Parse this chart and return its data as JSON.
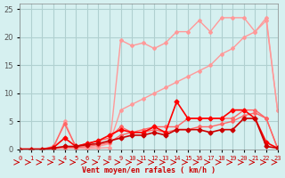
{
  "xlabel": "Vent moyen/en rafales ( km/h )",
  "ylabel": "",
  "xlim": [
    0,
    23
  ],
  "ylim": [
    0,
    26
  ],
  "bg_color": "#d6f0f0",
  "grid_color": "#b0d0d0",
  "series": [
    {
      "color": "#ff9999",
      "lw": 1.0,
      "marker": "D",
      "ms": 2.0,
      "y": [
        0,
        0,
        0,
        0.1,
        5,
        0.2,
        0.1,
        0.2,
        0.3,
        19.5,
        18.5,
        19,
        18,
        19,
        21,
        21,
        23,
        21,
        23.5,
        23.5,
        23.5,
        21,
        23.5,
        7
      ]
    },
    {
      "color": "#ff9999",
      "lw": 1.0,
      "marker": "D",
      "ms": 2.0,
      "y": [
        0,
        0,
        0,
        0.1,
        0.2,
        0.2,
        0.3,
        0.5,
        1.0,
        7.0,
        8,
        9,
        10,
        11,
        12,
        13,
        14,
        15,
        17,
        18,
        20,
        21,
        23,
        7
      ]
    },
    {
      "color": "#ff6666",
      "lw": 1.0,
      "marker": "D",
      "ms": 2.0,
      "y": [
        0,
        0,
        0,
        0.5,
        4.5,
        0.5,
        1.0,
        1.5,
        2.0,
        4,
        3,
        3.5,
        4,
        4,
        4,
        5.5,
        5.5,
        5.5,
        5.5,
        5.5,
        7,
        7,
        5.5,
        0.2
      ]
    },
    {
      "color": "#ff6666",
      "lw": 1.0,
      "marker": "D",
      "ms": 2.0,
      "y": [
        0,
        0,
        0,
        0.2,
        0.3,
        0.3,
        0.5,
        0.8,
        1.2,
        2.5,
        3,
        3,
        3.5,
        3,
        3.5,
        3.5,
        4,
        4,
        4.5,
        5,
        6,
        6.5,
        5.5,
        0.2
      ]
    },
    {
      "color": "#ff0000",
      "lw": 1.2,
      "marker": "D",
      "ms": 2.5,
      "y": [
        0,
        0,
        0,
        0.3,
        2.0,
        0.5,
        1.0,
        1.5,
        2.5,
        3.5,
        3,
        3,
        4,
        3,
        8.5,
        5.5,
        5.5,
        5.5,
        5.5,
        7,
        7,
        5.5,
        1.2,
        0.2
      ]
    },
    {
      "color": "#cc0000",
      "lw": 1.2,
      "marker": "D",
      "ms": 2.5,
      "y": [
        0,
        0,
        0,
        0.2,
        0.5,
        0.5,
        0.8,
        1.0,
        1.5,
        2.0,
        2.5,
        2.5,
        3.0,
        2.5,
        3.5,
        3.5,
        3.5,
        3.0,
        3.5,
        3.5,
        5.5,
        5.5,
        0.5,
        0.2
      ]
    }
  ],
  "xtick_labels": [
    "0",
    "1",
    "2",
    "3",
    "4",
    "5",
    "6",
    "7",
    "8",
    "9",
    "10",
    "11",
    "12",
    "13",
    "14",
    "15",
    "16",
    "17",
    "18",
    "19",
    "20",
    "21",
    "22",
    "23"
  ],
  "ytick_values": [
    0,
    5,
    10,
    15,
    20,
    25
  ]
}
